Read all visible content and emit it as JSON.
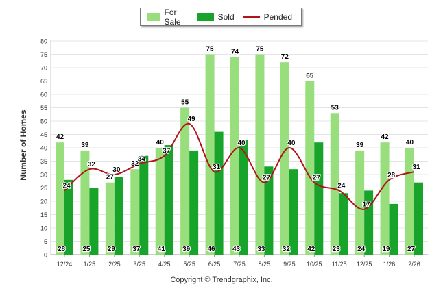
{
  "chart_data": {
    "type": "bar",
    "categories": [
      "12/24",
      "1/25",
      "2/25",
      "3/25",
      "4/25",
      "5/25",
      "6/25",
      "7/25",
      "8/25",
      "9/25",
      "10/25",
      "11/25",
      "12/25",
      "1/26",
      "2/26"
    ],
    "series": [
      {
        "name": "For Sale",
        "type": "bar",
        "color": "#98de7c",
        "values": [
          42,
          39,
          27,
          32,
          40,
          55,
          75,
          74,
          75,
          72,
          65,
          53,
          39,
          42,
          40
        ]
      },
      {
        "name": "Sold",
        "type": "bar",
        "color": "#18a32a",
        "values": [
          28,
          25,
          29,
          37,
          41,
          39,
          46,
          43,
          33,
          32,
          42,
          23,
          24,
          19,
          27
        ]
      },
      {
        "name": "Pended",
        "type": "line",
        "color": "#b0141a",
        "values": [
          24,
          32,
          30,
          34,
          37,
          49,
          31,
          40,
          27,
          40,
          27,
          24,
          17,
          28,
          31
        ]
      }
    ],
    "xlabel": "",
    "ylabel": "Number of Homes",
    "ylim": [
      0,
      80
    ],
    "yticks": [
      0,
      5,
      10,
      15,
      20,
      25,
      30,
      35,
      40,
      45,
      50,
      55,
      60,
      65,
      70,
      75,
      80
    ],
    "grid": true,
    "legend_position": "top-center"
  },
  "footer": {
    "copyright": "Copyright © Trendgraphix, Inc."
  }
}
